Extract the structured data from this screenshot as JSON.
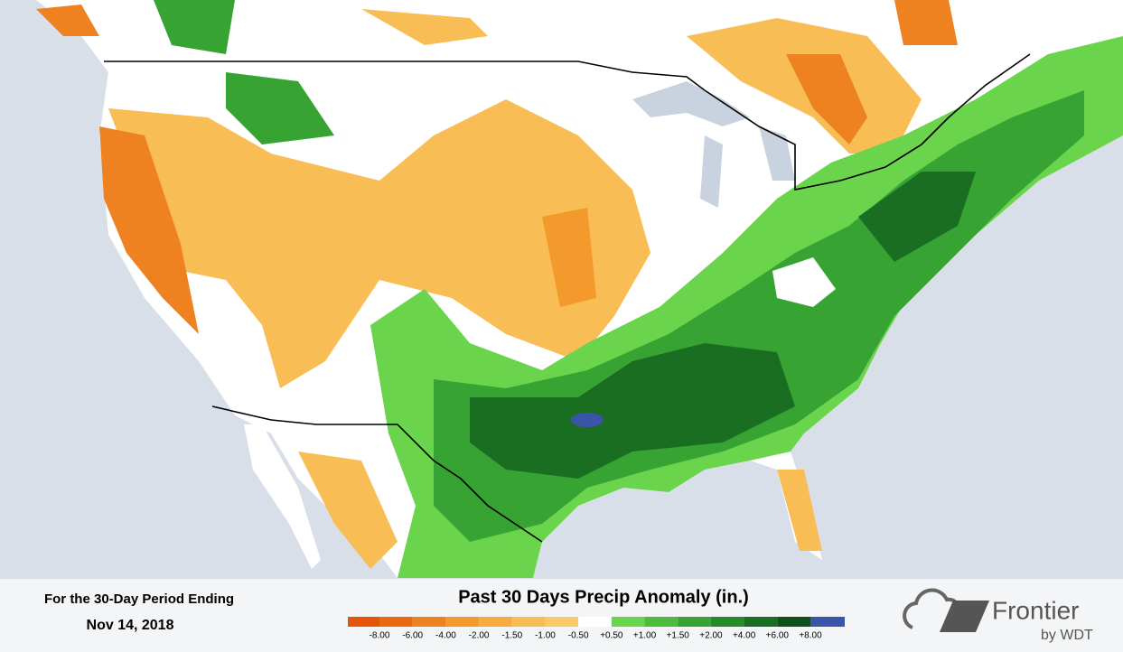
{
  "footer": {
    "period_label": "For the 30-Day Period Ending",
    "date": "Nov 14, 2018"
  },
  "title": "Past 30 Days Precip Anomaly (in.)",
  "legend": {
    "colors": [
      "#e4540a",
      "#ea6a12",
      "#ef8220",
      "#f49a2c",
      "#f7ad3e",
      "#f9bd55",
      "#fbc96b",
      "#ffffff",
      "#6ad44c",
      "#4cbc3c",
      "#36a332",
      "#258a2a",
      "#1a6e22",
      "#10501a",
      "#3a55a8"
    ],
    "labels": [
      "-8.00",
      "-6.00",
      "-4.00",
      "-2.00",
      "-1.50",
      "-1.00",
      "-0.50",
      "+0.50",
      "+1.00",
      "+1.50",
      "+2.00",
      "+4.00",
      "+6.00",
      "+8.00"
    ]
  },
  "logo": {
    "name": "Frontier",
    "byline": "by WDT"
  }
}
